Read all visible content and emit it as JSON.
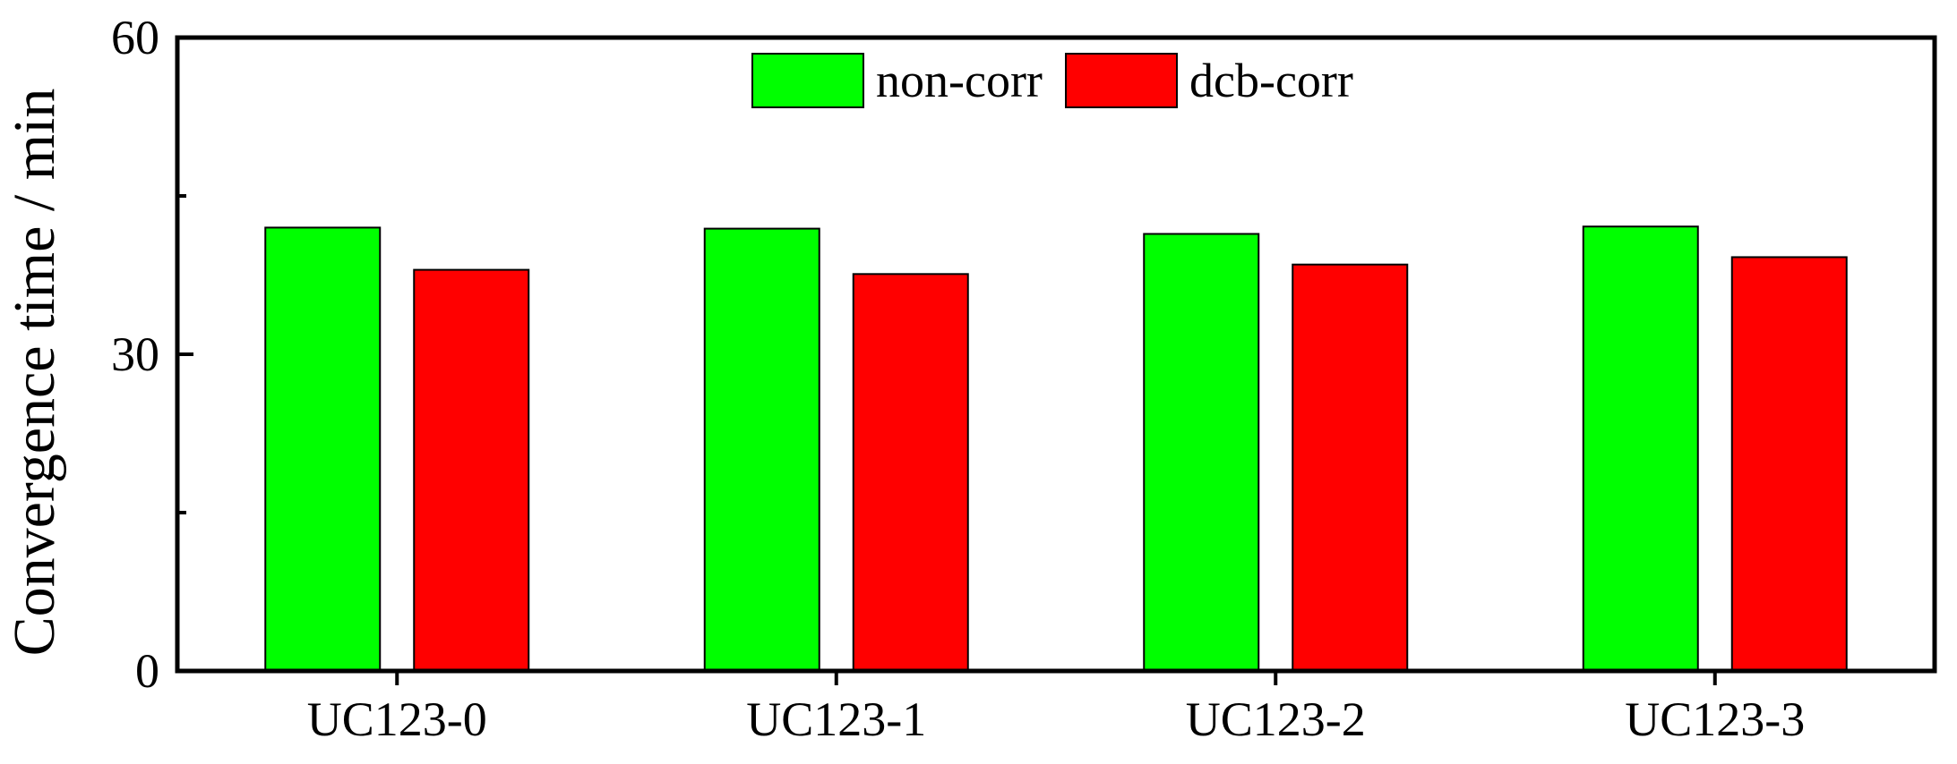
{
  "chart_data": {
    "type": "bar",
    "categories": [
      "UC123-0",
      "UC123-1",
      "UC123-2",
      "UC123-3"
    ],
    "series": [
      {
        "name": "non-corr",
        "color": "#00ff00",
        "values": [
          42.0,
          41.9,
          41.4,
          42.1
        ]
      },
      {
        "name": "dcb-corr",
        "color": "#ff0000",
        "values": [
          38.0,
          37.6,
          38.5,
          39.2
        ]
      }
    ],
    "ylabel": "Convergence time / min",
    "xlabel": "",
    "ylim": [
      0,
      60
    ],
    "yticks": [
      0,
      30,
      60
    ],
    "grid": false,
    "legend_position": "top-center"
  }
}
